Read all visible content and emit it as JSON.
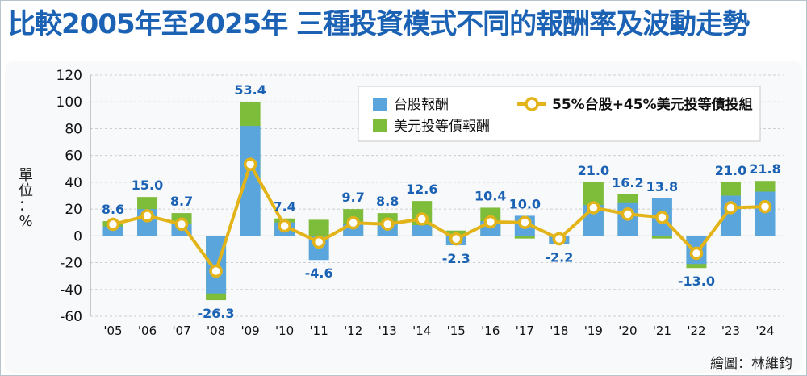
{
  "header": {
    "title": "比較2005年至2025年  三種投資模式不同的報酬率及波動走勢"
  },
  "yaxis_label_chars": [
    "單",
    "位",
    "：",
    "%"
  ],
  "credit": "繪圖：林維鈞",
  "legend": {
    "tw": "台股報酬",
    "us": "美元投等債報酬",
    "portfolio": "55%台股+45%美元投等債投組"
  },
  "colors": {
    "tw": "#5aa6dc",
    "us": "#7ebd3a",
    "portfolio": "#e3b419",
    "title": "#1b62b4"
  },
  "chart_data": {
    "type": "bar",
    "title": "比較2005年至2025年  三種投資模式不同的報酬率及波動走勢",
    "ylabel": "單位：%",
    "ylim": [
      -60,
      120
    ],
    "yticks": [
      120,
      100,
      80,
      60,
      40,
      20,
      0,
      -20,
      -40,
      -60
    ],
    "grid": true,
    "legend_position": "top-right",
    "categories": [
      "'05",
      "'06",
      "'07",
      "'08",
      "'09",
      "'10",
      "'11",
      "'12",
      "'13",
      "'14",
      "'15",
      "'16",
      "'17",
      "'18",
      "'19",
      "'20",
      "'21",
      "'22",
      "'23",
      "'24"
    ],
    "series": [
      {
        "name": "台股報酬",
        "kind": "bar",
        "values": [
          7,
          20,
          9,
          -43,
          82,
          10,
          -18,
          9,
          10,
          8,
          -7,
          11,
          15,
          -6,
          23,
          25,
          28,
          -21,
          30,
          33
        ]
      },
      {
        "name": "美元投等債報酬",
        "kind": "bar",
        "values": [
          11,
          29,
          17,
          -48,
          100,
          13,
          12,
          20,
          17,
          26,
          4,
          21,
          -2,
          -5,
          40,
          31,
          -2,
          -24,
          40,
          41
        ]
      },
      {
        "name": "55%台股+45%美元投等債投組",
        "kind": "line",
        "values": [
          8.6,
          15.0,
          8.7,
          -26.3,
          53.4,
          7.4,
          -4.6,
          9.7,
          8.8,
          12.6,
          -2.3,
          10.4,
          10.0,
          -2.2,
          21.0,
          16.2,
          13.8,
          -13.0,
          21.0,
          21.8
        ],
        "labels": [
          "8.6",
          "15.0",
          "8.7",
          "-26.3",
          "53.4",
          "7.4",
          "-4.6",
          "9.7",
          "8.8",
          "12.6",
          "-2.3",
          "10.4",
          "10.0",
          "-2.2",
          "21.0",
          "16.2",
          "13.8",
          "-13.0",
          "21.0",
          "21.8"
        ]
      }
    ]
  }
}
